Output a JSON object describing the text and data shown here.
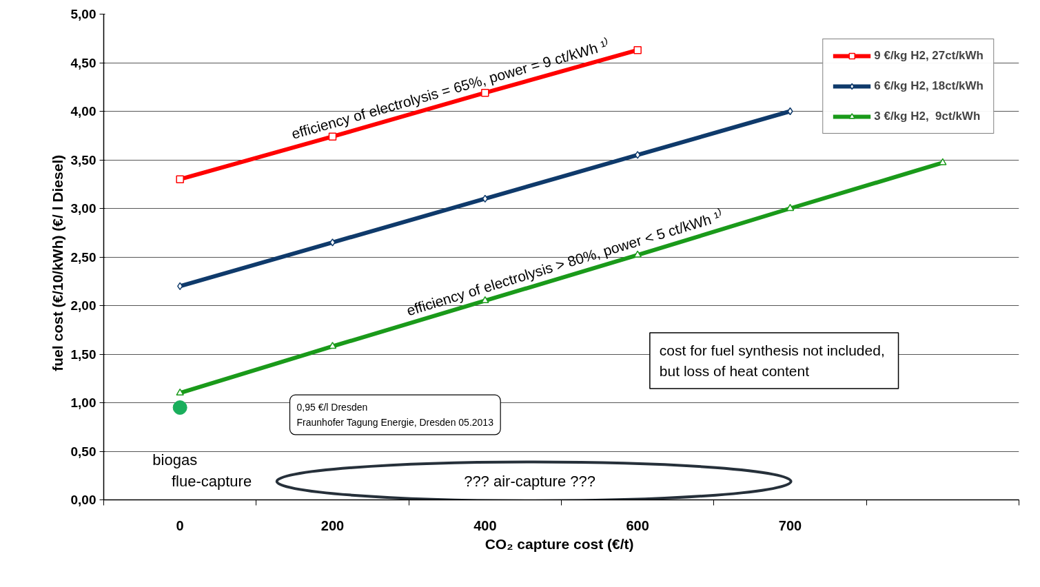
{
  "chart_data": {
    "type": "line",
    "xlabel": "CO₂ capture cost  (€/t)",
    "ylabel": "fuel cost  (€/10/kWh)   (€/ l Diesel)",
    "categories": [
      "0",
      "200",
      "400",
      "600",
      "700",
      null
    ],
    "ylim": [
      0,
      5
    ],
    "yticks": [
      {
        "value": 0,
        "label": "0,00"
      },
      {
        "value": 0.5,
        "label": "0,50"
      },
      {
        "value": 1,
        "label": "1,00"
      },
      {
        "value": 1.5,
        "label": "1,50"
      },
      {
        "value": 2,
        "label": "2,00"
      },
      {
        "value": 2.5,
        "label": "2,50"
      },
      {
        "value": 3,
        "label": "3,00"
      },
      {
        "value": 3.5,
        "label": "3,50"
      },
      {
        "value": 4,
        "label": "4,00"
      },
      {
        "value": 4.5,
        "label": "4,50"
      },
      {
        "value": 5,
        "label": "5,00"
      }
    ],
    "grid": "y",
    "legend": "top right",
    "series": [
      {
        "name": "9 €/kg H2, 27ct/kWh",
        "color": "#ff0000",
        "marker": "square",
        "values": [
          3.3,
          3.74,
          4.19,
          4.63,
          null,
          null
        ]
      },
      {
        "name": "6 €/kg H2, 18ct/kWh",
        "color": "#0f3a6b",
        "marker": "diamond",
        "values": [
          2.2,
          2.65,
          3.1,
          3.55,
          4.0,
          null
        ]
      },
      {
        "name": "3 €/kg H2,  9ct/kWh",
        "color": "#1a9a1a",
        "marker": "triangle",
        "values": [
          1.1,
          1.58,
          2.05,
          2.52,
          3.0,
          3.47
        ]
      },
      {
        "type": "scatter",
        "color": "#1aae5c",
        "marker": "circle",
        "x": [
          "0"
        ],
        "values": [
          0.95
        ]
      }
    ],
    "annotations": [
      "efficiency of electrolysis = 65%,  power = 9 ct/kWh ¹⁾",
      "efficiency of electrolysis > 80%,  power < 5 ct/kWh ¹⁾",
      "cost for fuel synthesis  not included,\nbut loss of heat content",
      "0,95 €/l Dresden\nFraunhofer Tagung Energie, Dresden 05.2013",
      "biogas",
      "flue-capture",
      "???  air-capture  ???"
    ]
  }
}
